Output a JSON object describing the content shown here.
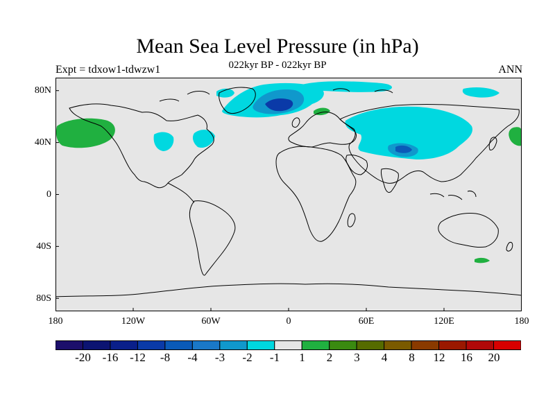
{
  "title": "Mean Sea Level Pressure (in hPa)",
  "subtitle": "022kyr BP - 022kyr BP",
  "experiment": "Expt = tdxow1-tdwzw1",
  "period": "ANN",
  "lat_labels": [
    "80N",
    "40N",
    "0",
    "40S",
    "80S"
  ],
  "lon_labels": [
    "180",
    "120W",
    "60W",
    "0",
    "60E",
    "120E",
    "180"
  ],
  "colorbar": {
    "labels": [
      "-20",
      "-16",
      "-12",
      "-8",
      "-4",
      "-3",
      "-2",
      "-1",
      "1",
      "2",
      "3",
      "4",
      "8",
      "12",
      "16",
      "20"
    ],
    "colors": [
      "#1c0f6b",
      "#0c1472",
      "#0a1f8a",
      "#0a3aa8",
      "#0a5ab8",
      "#1a78c8",
      "#1098cc",
      "#00d8e0",
      "#e6e6e6",
      "#20b040",
      "#3a8a10",
      "#556b00",
      "#7a5a00",
      "#8a3a00",
      "#9a1800",
      "#b00808",
      "#d80000"
    ]
  },
  "colors": {
    "ocean_background": "#e6e6e6",
    "coastline": "#000000"
  }
}
